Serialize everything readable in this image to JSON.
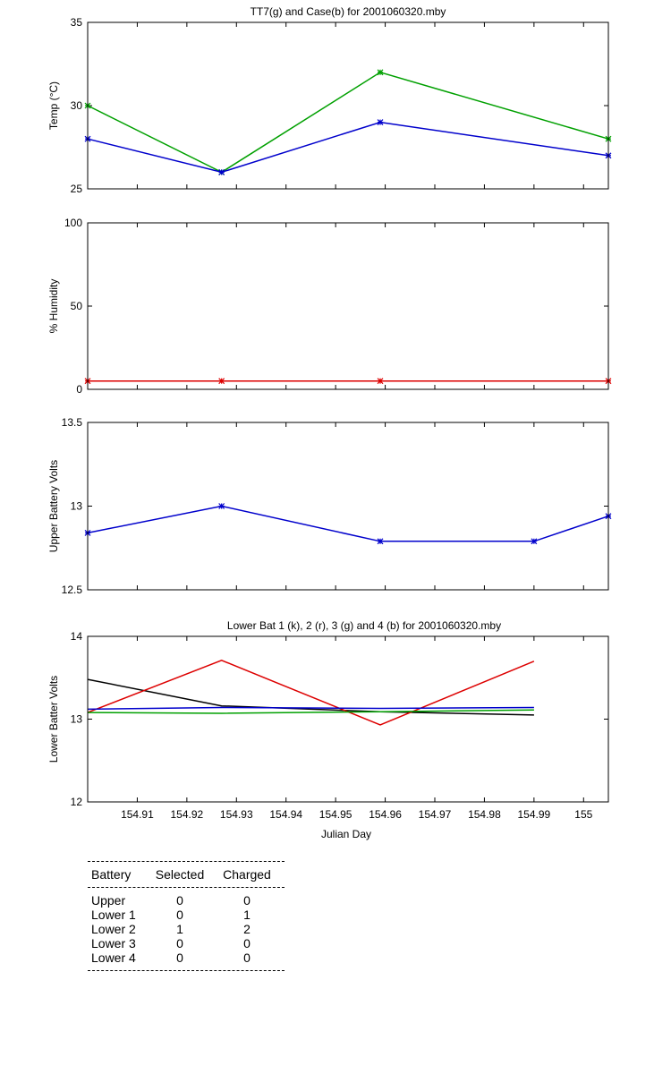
{
  "chart_data": [
    {
      "type": "line",
      "title": "TT7(g) and Case(b) for 2001060320.mby",
      "xlabel": "",
      "ylabel": "Temp  (°C)",
      "xlim": [
        154.9,
        155.005
      ],
      "ylim": [
        25,
        35
      ],
      "yticks": [
        "25",
        "30",
        "35"
      ],
      "grid": false,
      "series": [
        {
          "color": "#00a000",
          "marker": "star",
          "x": [
            154.9,
            154.927,
            154.959,
            155.005
          ],
          "y": [
            30,
            26,
            32,
            28
          ]
        },
        {
          "color": "#0000cc",
          "marker": "star",
          "x": [
            154.9,
            154.927,
            154.959,
            155.005
          ],
          "y": [
            28,
            26,
            29,
            27
          ]
        }
      ]
    },
    {
      "type": "line",
      "title": "",
      "xlabel": "",
      "ylabel": "% Humidity",
      "xlim": [
        154.9,
        155.005
      ],
      "ylim": [
        0,
        100
      ],
      "yticks": [
        "0",
        "50",
        "100"
      ],
      "grid": false,
      "series": [
        {
          "color": "#dd0000",
          "marker": "star",
          "x": [
            154.9,
            154.927,
            154.959,
            155.005
          ],
          "y": [
            5,
            5,
            5,
            5
          ]
        }
      ]
    },
    {
      "type": "line",
      "title": "",
      "xlabel": "",
      "ylabel": "Upper Battery Volts",
      "xlim": [
        154.9,
        155.005
      ],
      "ylim": [
        12.5,
        13.5
      ],
      "yticks": [
        "12.5",
        "13",
        "13.5"
      ],
      "grid": false,
      "series": [
        {
          "color": "#0000cc",
          "marker": "star",
          "x": [
            154.9,
            154.927,
            154.959,
            154.99,
            155.005
          ],
          "y": [
            12.84,
            13.0,
            12.79,
            12.79,
            12.94
          ]
        }
      ]
    },
    {
      "type": "line",
      "title": "Lower Bat 1 (k), 2 (r), 3 (g) and 4 (b) for 2001060320.mby",
      "xlabel": "Julian Day",
      "ylabel": "Lower Batter Volts",
      "xlim": [
        154.9,
        155.005
      ],
      "ylim": [
        12,
        14
      ],
      "yticks": [
        "12",
        "13",
        "14"
      ],
      "xticks": [
        "154.91",
        "154.92",
        "154.93",
        "154.94",
        "154.95",
        "154.96",
        "154.97",
        "154.98",
        "154.99",
        "155"
      ],
      "grid": false,
      "series": [
        {
          "color": "#000000",
          "marker": "none",
          "x": [
            154.9,
            154.927,
            154.959,
            154.99
          ],
          "y": [
            13.48,
            13.16,
            13.09,
            13.05
          ]
        },
        {
          "color": "#dd0000",
          "marker": "none",
          "x": [
            154.9,
            154.927,
            154.959,
            154.99
          ],
          "y": [
            13.08,
            13.71,
            12.93,
            13.7
          ]
        },
        {
          "color": "#00a000",
          "marker": "none",
          "x": [
            154.9,
            154.927,
            154.959,
            154.99
          ],
          "y": [
            13.08,
            13.07,
            13.09,
            13.11
          ]
        },
        {
          "color": "#0000cc",
          "marker": "none",
          "x": [
            154.9,
            154.927,
            154.959,
            154.99
          ],
          "y": [
            13.12,
            13.14,
            13.13,
            13.14
          ]
        }
      ]
    }
  ],
  "battery_table": {
    "headers": [
      "Battery",
      "Selected",
      "Charged"
    ],
    "rows": [
      [
        "Upper",
        "0",
        "0"
      ],
      [
        "Lower 1",
        "0",
        "1"
      ],
      [
        "Lower 2",
        "1",
        "2"
      ],
      [
        "Lower 3",
        "0",
        "0"
      ],
      [
        "Lower 4",
        "0",
        "0"
      ]
    ]
  }
}
